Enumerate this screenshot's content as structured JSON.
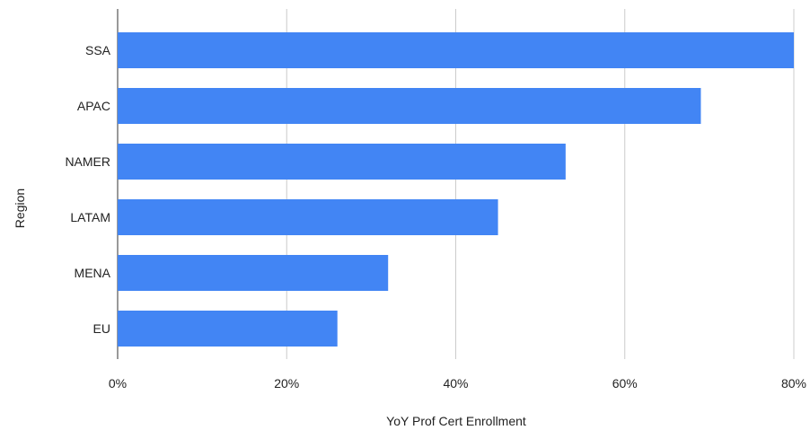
{
  "chart_data": {
    "type": "bar",
    "orientation": "horizontal",
    "categories": [
      "SSA",
      "APAC",
      "NAMER",
      "LATAM",
      "MENA",
      "EU"
    ],
    "values": [
      80,
      69,
      53,
      45,
      32,
      26
    ],
    "xlabel": "YoY Prof Cert Enrollment",
    "ylabel": "Region",
    "xlim": [
      0,
      80
    ],
    "x_ticks": [
      0,
      20,
      40,
      60,
      80
    ],
    "x_tick_labels": [
      "0%",
      "20%",
      "40%",
      "60%",
      "80%"
    ],
    "grid": true,
    "bar_color": "#4285f4",
    "legend": "none"
  }
}
